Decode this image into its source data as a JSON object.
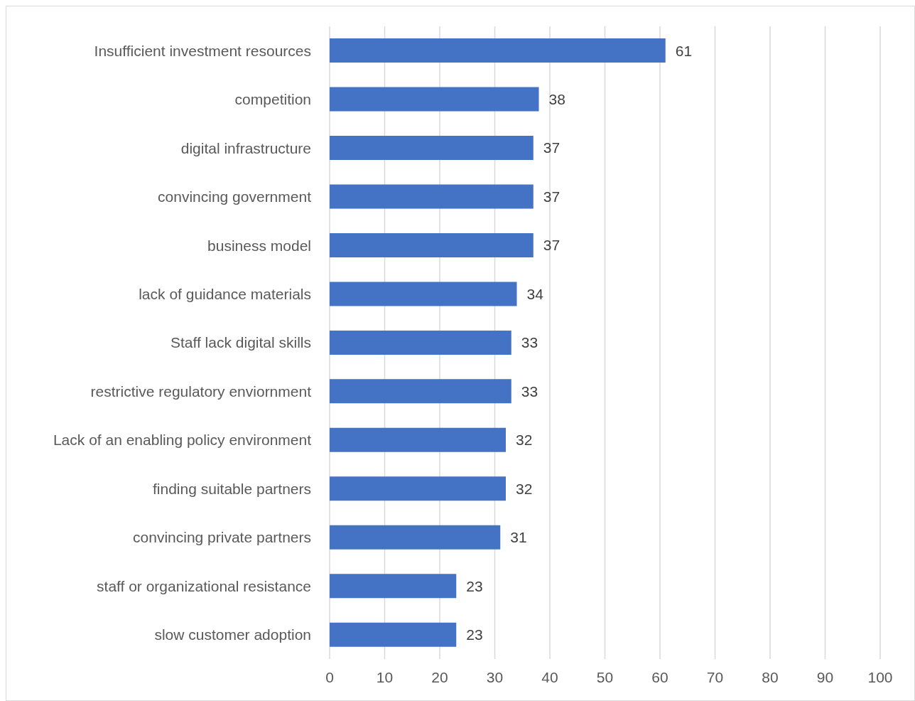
{
  "chart_data": {
    "type": "bar",
    "orientation": "horizontal",
    "categories": [
      "Insufficient investment resources",
      "competition",
      "digital infrastructure",
      "convincing government",
      "business model",
      "lack of guidance materials",
      "Staff lack digital skills",
      "restrictive regulatory enviornment",
      "Lack of an enabling policy environment",
      "finding suitable partners",
      "convincing private partners",
      "staff or organizational resistance",
      "slow customer adoption"
    ],
    "values": [
      61,
      38,
      37,
      37,
      37,
      34,
      33,
      33,
      32,
      32,
      31,
      23,
      23
    ],
    "color": "#4472c4",
    "xlim": [
      0,
      100
    ],
    "xticks": [
      0,
      10,
      20,
      30,
      40,
      50,
      60,
      70,
      80,
      90,
      100
    ],
    "grid": "x",
    "data_labels": true
  }
}
